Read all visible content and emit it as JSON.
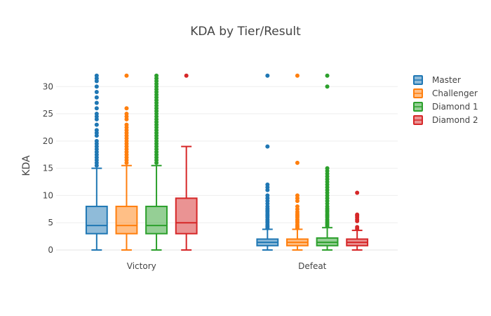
{
  "chart_data": {
    "type": "box",
    "title": "KDA by Tier/Result",
    "xlabel": "",
    "ylabel": "KDA",
    "categories": [
      "Victory",
      "Defeat"
    ],
    "ylim": [
      0,
      33
    ],
    "yticks": [
      0,
      5,
      10,
      15,
      20,
      25,
      30
    ],
    "grid": true,
    "legend_position": "right",
    "series": [
      {
        "name": "Master",
        "color": "#1f77b4",
        "boxes": [
          {
            "category": "Victory",
            "q1": 3.0,
            "median": 4.5,
            "q3": 8.0,
            "lower_whisker": 0,
            "upper_whisker": 15.0,
            "outliers": [
              15.5,
              16,
              16.5,
              17,
              17.5,
              18,
              18.5,
              19,
              19.5,
              20,
              21,
              21.5,
              22,
              23,
              24,
              24.5,
              25,
              26,
              27,
              28,
              29,
              30,
              31,
              31.5,
              32
            ]
          },
          {
            "category": "Defeat",
            "q1": 0.8,
            "median": 1.4,
            "q3": 2.0,
            "lower_whisker": 0,
            "upper_whisker": 3.8,
            "outliers": [
              4,
              4.3,
              4.6,
              5,
              5.3,
              5.6,
              6,
              6.3,
              6.6,
              7,
              7.3,
              7.6,
              8,
              8.5,
              9,
              9.5,
              10,
              11,
              11.5,
              12,
              19,
              32
            ]
          }
        ]
      },
      {
        "name": "Challenger",
        "color": "#ff7f0e",
        "boxes": [
          {
            "category": "Victory",
            "q1": 3.0,
            "median": 4.5,
            "q3": 8.0,
            "lower_whisker": 0,
            "upper_whisker": 15.5,
            "outliers": [
              16,
              16.5,
              17,
              17.5,
              18,
              18.5,
              19,
              19.5,
              20,
              20.5,
              21,
              21.5,
              22,
              22.5,
              23,
              24,
              24.5,
              25,
              26,
              32
            ]
          },
          {
            "category": "Defeat",
            "q1": 0.8,
            "median": 1.4,
            "q3": 2.0,
            "lower_whisker": 0,
            "upper_whisker": 3.8,
            "outliers": [
              4,
              4.3,
              4.6,
              5,
              5.3,
              5.6,
              6,
              6.3,
              6.6,
              7,
              7.5,
              8,
              9,
              9.5,
              10,
              16,
              32
            ]
          }
        ]
      },
      {
        "name": "Diamond 1",
        "color": "#2ca02c",
        "boxes": [
          {
            "category": "Victory",
            "q1": 3.0,
            "median": 4.5,
            "q3": 8.0,
            "lower_whisker": 0,
            "upper_whisker": 15.5,
            "outliers": [
              16,
              16.5,
              17,
              17.5,
              18,
              18.5,
              19,
              19.5,
              20,
              20.5,
              21,
              21.5,
              22,
              22.5,
              23,
              23.5,
              24,
              24.5,
              25,
              25.5,
              26,
              26.5,
              27,
              27.5,
              28,
              28.5,
              29,
              29.5,
              30,
              30.5,
              31,
              31.5,
              32
            ]
          },
          {
            "category": "Defeat",
            "q1": 0.8,
            "median": 1.4,
            "q3": 2.2,
            "lower_whisker": 0,
            "upper_whisker": 4.1,
            "outliers": [
              4.4,
              4.7,
              5,
              5.3,
              5.6,
              6,
              6.3,
              6.6,
              7,
              7.3,
              7.6,
              8,
              8.5,
              9,
              9.5,
              10,
              10.5,
              11,
              11.5,
              12,
              12.5,
              13,
              13.5,
              14,
              14.5,
              15,
              30,
              32
            ]
          }
        ]
      },
      {
        "name": "Diamond 2",
        "color": "#d62728",
        "boxes": [
          {
            "category": "Victory",
            "q1": 3.0,
            "median": 5.0,
            "q3": 9.5,
            "lower_whisker": 0,
            "upper_whisker": 19.0,
            "outliers": [
              32
            ]
          },
          {
            "category": "Defeat",
            "q1": 0.8,
            "median": 1.4,
            "q3": 2.0,
            "lower_whisker": 0,
            "upper_whisker": 3.6,
            "outliers": [
              3.9,
              4.2,
              5.3,
              5.6,
              6,
              6.3,
              6.5,
              10.5
            ]
          }
        ]
      }
    ]
  }
}
